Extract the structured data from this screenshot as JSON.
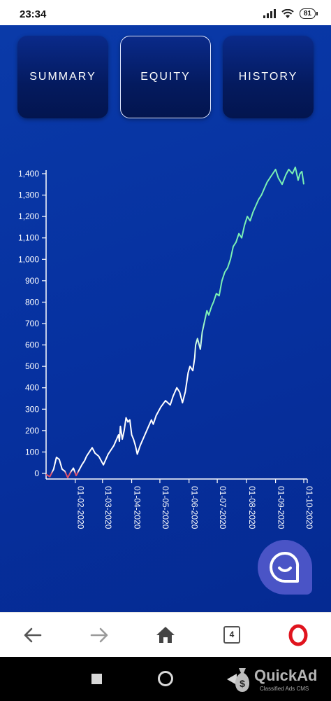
{
  "status_bar": {
    "time": "23:34",
    "battery": "81"
  },
  "tabs": [
    {
      "label": "SUMMARY",
      "active": false
    },
    {
      "label": "EQUITY",
      "active": true
    },
    {
      "label": "HISTORY",
      "active": false
    }
  ],
  "chart_data": {
    "type": "line",
    "title": "",
    "xlabel": "",
    "ylabel": "",
    "ylim": [
      -50,
      1450
    ],
    "y_ticks": [
      "1,400",
      "1,300",
      "1,200",
      "1,100",
      "1,000",
      "900",
      "800",
      "700",
      "600",
      "500",
      "400",
      "300",
      "200",
      "100",
      "0"
    ],
    "x_ticks": [
      "01-02-2020",
      "01-03-2020",
      "01-04-2020",
      "01-05-2020",
      "01-06-2020",
      "01-07-2020",
      "01-08-2020",
      "01-09-2020",
      "01-10-2020"
    ],
    "colors": {
      "negative": "#e0506a",
      "low": "#ffffff",
      "high": "#7af0b4"
    },
    "series": [
      {
        "x": [
          "2020-01-01",
          "2020-01-05",
          "2020-01-09",
          "2020-01-12",
          "2020-01-15",
          "2020-01-18",
          "2020-01-21",
          "2020-01-24",
          "2020-01-27",
          "2020-01-30",
          "2020-02-02",
          "2020-02-05",
          "2020-02-08",
          "2020-02-11",
          "2020-02-13",
          "2020-02-16",
          "2020-02-19",
          "2020-02-22",
          "2020-02-26",
          "2020-03-02",
          "2020-03-07",
          "2020-03-13",
          "2020-03-18",
          "2020-03-19",
          "2020-03-20",
          "2020-03-22",
          "2020-03-24",
          "2020-03-26",
          "2020-03-28",
          "2020-03-30",
          "2020-04-01",
          "2020-04-03",
          "2020-04-05",
          "2020-04-07",
          "2020-04-10",
          "2020-04-14",
          "2020-04-19",
          "2020-04-22",
          "2020-04-24",
          "2020-04-27",
          "2020-05-02",
          "2020-05-07",
          "2020-05-12",
          "2020-05-15",
          "2020-05-19",
          "2020-05-22",
          "2020-05-25",
          "2020-05-28",
          "2020-05-31",
          "2020-06-02",
          "2020-06-05",
          "2020-06-07",
          "2020-06-08",
          "2020-06-10",
          "2020-06-13",
          "2020-06-15",
          "2020-06-18",
          "2020-06-20",
          "2020-06-22",
          "2020-06-25",
          "2020-06-27",
          "2020-06-30",
          "2020-07-03",
          "2020-07-06",
          "2020-07-09",
          "2020-07-12",
          "2020-07-15",
          "2020-07-18",
          "2020-07-21",
          "2020-07-24",
          "2020-07-27",
          "2020-07-30",
          "2020-08-02",
          "2020-08-05",
          "2020-08-08",
          "2020-08-11",
          "2020-08-14",
          "2020-08-17",
          "2020-08-20",
          "2020-08-23",
          "2020-08-26",
          "2020-08-29",
          "2020-09-01",
          "2020-09-04",
          "2020-09-08",
          "2020-09-12",
          "2020-09-15",
          "2020-09-19",
          "2020-09-22",
          "2020-09-25",
          "2020-09-27",
          "2020-09-29",
          "2020-09-30",
          "2020-10-01"
        ],
        "y": [
          -5,
          -15,
          20,
          75,
          65,
          20,
          10,
          -20,
          5,
          25,
          -10,
          15,
          40,
          60,
          80,
          100,
          120,
          95,
          80,
          40,
          90,
          130,
          180,
          150,
          220,
          160,
          200,
          260,
          240,
          250,
          180,
          160,
          130,
          90,
          130,
          170,
          220,
          250,
          230,
          270,
          310,
          340,
          320,
          360,
          400,
          380,
          330,
          380,
          470,
          500,
          480,
          540,
          600,
          630,
          580,
          660,
          720,
          760,
          740,
          780,
          800,
          840,
          830,
          900,
          940,
          960,
          1000,
          1060,
          1080,
          1120,
          1100,
          1160,
          1200,
          1180,
          1220,
          1250,
          1280,
          1300,
          1330,
          1360,
          1380,
          1400,
          1420,
          1380,
          1350,
          1395,
          1420,
          1400,
          1430,
          1370,
          1400,
          1410,
          1380,
          1350
        ]
      }
    ]
  }
}
